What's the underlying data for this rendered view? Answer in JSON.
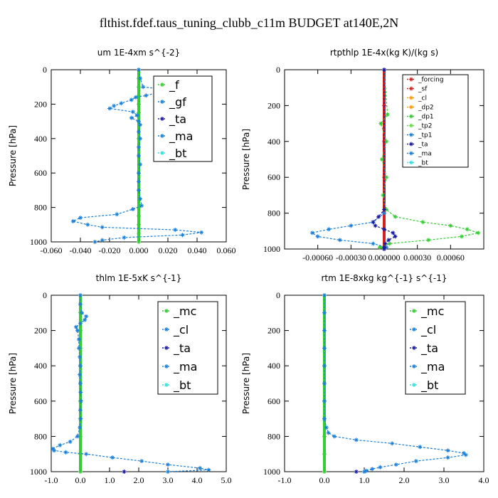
{
  "figure_title": "flthist.fdef.taus_tuning_clubb_c11m  BUDGET at140E,2N",
  "colors": {
    "black": "#000000",
    "blue": "#1a7fd8",
    "green": "#33cc33",
    "red": "#d42020",
    "darkblue": "#1a1aa0",
    "cyan": "#33e0e0",
    "orange": "#ff9900",
    "lime": "#66dd44"
  },
  "chart_data": [
    {
      "type": "line",
      "title": "um   1E-4xm s^{-2}",
      "xlabel": "",
      "ylabel": "Pressure [hPa]",
      "xlim": [
        -0.06,
        0.06
      ],
      "ylim": [
        1000,
        0
      ],
      "xticks": [
        -0.06,
        -0.04,
        -0.02,
        0.0,
        0.02,
        0.04,
        0.06
      ],
      "xtick_labels": [
        "-0.060",
        "-0.040",
        "-0.020",
        "0.000",
        "0.020",
        "0.040",
        "0.060"
      ],
      "yticks": [
        0,
        200,
        400,
        600,
        800,
        1000
      ],
      "ytick_labels": [
        "0",
        "200",
        "400",
        "600",
        "800",
        "1000"
      ],
      "legend": [
        "_f",
        "_gf",
        "_ta",
        "_ma",
        "_bt"
      ],
      "legend_position": "top-right",
      "series": [
        {
          "name": "_f",
          "color": "#33cc33",
          "y": [
            0,
            50,
            100,
            150,
            200,
            250,
            300,
            400,
            500,
            600,
            700,
            800,
            850,
            900,
            950,
            1000
          ],
          "x": [
            0,
            0,
            0,
            0,
            0,
            0,
            0,
            0,
            0,
            0,
            0,
            0,
            0,
            0,
            0,
            0
          ]
        },
        {
          "name": "_gf",
          "color": "#1a7fd8",
          "y": [
            0,
            50,
            100,
            115,
            125,
            130,
            135,
            150,
            160,
            175,
            195,
            210,
            225,
            245,
            265,
            280,
            300,
            320,
            360,
            400,
            450,
            500,
            550,
            600,
            650,
            700,
            750,
            790,
            810,
            840,
            860,
            880,
            900,
            915,
            930,
            945,
            960,
            975,
            990,
            1000
          ],
          "x": [
            0.0,
            0.001,
            0.003,
            0.018,
            0.02,
            0.035,
            0.012,
            0.005,
            -0.002,
            -0.005,
            -0.012,
            -0.017,
            -0.02,
            -0.004,
            -0.001,
            -0.005,
            0.0,
            0.001,
            0.0,
            0.001,
            0.0,
            0.0,
            0.001,
            0.0,
            0.0,
            0.0,
            0.001,
            0.002,
            -0.004,
            -0.015,
            -0.04,
            -0.045,
            -0.035,
            -0.025,
            0.025,
            0.043,
            0.03,
            -0.01,
            -0.025,
            -0.03
          ]
        },
        {
          "name": "_ta",
          "color": "#1a1aa0",
          "y": [],
          "x": []
        },
        {
          "name": "_ma",
          "color": "#1a7fd8",
          "y": [],
          "x": []
        },
        {
          "name": "_bt",
          "color": "#33e0e0",
          "y": [],
          "x": []
        }
      ]
    },
    {
      "type": "line",
      "title": "rtpthlp   1E-4x(kg K)/(kg s)",
      "xlabel": "",
      "ylabel": "Pressure [hPa]",
      "xlim": [
        -0.0009,
        0.0009
      ],
      "ylim": [
        1000,
        0
      ],
      "xticks": [
        -0.0006,
        -0.0003,
        0.0,
        0.0003,
        0.0006
      ],
      "xtick_labels": [
        "-0.00060",
        "-0.00030",
        "0.000000",
        "0.00030",
        "0.00060"
      ],
      "yticks": [
        0,
        200,
        400,
        600,
        800,
        1000
      ],
      "ytick_labels": [
        "0",
        "200",
        "400",
        "600",
        "800",
        "1000"
      ],
      "legend": [
        "_forcing",
        "_sf",
        "_cl",
        "_dp2",
        "_dp1",
        "_tp2",
        "_tp1",
        "_ta",
        "_ma",
        "_bt"
      ],
      "legend_position": "top-right",
      "series": [
        {
          "name": "_forcing",
          "color": "#d42020",
          "y": [
            0,
            200,
            400,
            600,
            800,
            1000
          ],
          "x": [
            0,
            0,
            0,
            0,
            0,
            0
          ]
        },
        {
          "name": "_dp1",
          "color": "#33cc33",
          "y": [
            0,
            250,
            300,
            400,
            500,
            600,
            700,
            780,
            820,
            850,
            870,
            890,
            910,
            930,
            950,
            970,
            990,
            1000
          ],
          "x": [
            0,
            3e-05,
            -3e-05,
            2e-05,
            -2e-05,
            2e-05,
            -1e-05,
            2e-05,
            0.0001,
            0.00035,
            0.0006,
            0.00075,
            0.00085,
            0.0007,
            0.0004,
            5e-05,
            -4e-05,
            0
          ]
        },
        {
          "name": "_tp1",
          "color": "#1a7fd8",
          "y": [
            0,
            800,
            850,
            870,
            890,
            910,
            930,
            950,
            970,
            990,
            1000
          ],
          "x": [
            0,
            0,
            -0.0001,
            -0.0003,
            -0.0005,
            -0.00065,
            -0.0006,
            -0.0004,
            -0.0001,
            2e-05,
            0
          ]
        },
        {
          "name": "_ta",
          "color": "#1a1aa0",
          "y": [
            0,
            780,
            820,
            850,
            870,
            890,
            910,
            930,
            950,
            970,
            990,
            1000
          ],
          "x": [
            0,
            0,
            -5e-05,
            -0.0001,
            -8e-05,
            0,
            8e-05,
            0.0001,
            4e-05,
            1e-05,
            0,
            0
          ]
        },
        {
          "name": "_sf",
          "color": "#d42020",
          "y": [],
          "x": []
        },
        {
          "name": "_cl",
          "color": "#ff9900",
          "y": [],
          "x": []
        },
        {
          "name": "_dp2",
          "color": "#ff9900",
          "y": [],
          "x": []
        },
        {
          "name": "_tp2",
          "color": "#66dd44",
          "y": [],
          "x": []
        },
        {
          "name": "_ma",
          "color": "#1a7fd8",
          "y": [],
          "x": []
        },
        {
          "name": "_bt",
          "color": "#33e0e0",
          "y": [],
          "x": []
        }
      ]
    },
    {
      "type": "line",
      "title": "thlm   1E-5xK s^{-1}",
      "xlabel": "",
      "ylabel": "Pressure [hPa]",
      "xlim": [
        -1.0,
        5.0
      ],
      "ylim": [
        1000,
        0
      ],
      "xticks": [
        -1,
        0,
        1,
        2,
        3,
        4,
        5
      ],
      "xtick_labels": [
        "-1.0",
        "0.0",
        "1.0",
        "2.0",
        "3.0",
        "4.0",
        "5.0"
      ],
      "yticks": [
        0,
        200,
        400,
        600,
        800,
        1000
      ],
      "ytick_labels": [
        "0",
        "200",
        "400",
        "600",
        "800",
        "1000"
      ],
      "legend": [
        "_mc",
        "_cl",
        "_ta",
        "_ma",
        "_bt"
      ],
      "legend_position": "top-right",
      "series": [
        {
          "name": "_mc",
          "color": "#33cc33",
          "y": [
            0,
            100,
            200,
            300,
            400,
            500,
            600,
            700,
            800,
            900,
            1000
          ],
          "x": [
            0,
            0,
            0,
            0,
            0,
            0,
            0,
            0,
            0,
            0,
            0
          ]
        },
        {
          "name": "_cl",
          "color": "#1a7fd8",
          "y": [
            0,
            50,
            100,
            120,
            140,
            160,
            180,
            200,
            250,
            300,
            350,
            400,
            450,
            500,
            550,
            600,
            650,
            700,
            750,
            800,
            830,
            850,
            870,
            880,
            890,
            900,
            920,
            940,
            960,
            980,
            990,
            1000
          ],
          "x": [
            0,
            0,
            0.05,
            0.2,
            0.15,
            0.0,
            -0.15,
            -0.1,
            -0.05,
            -0.05,
            -0.02,
            0.0,
            -0.02,
            0.0,
            0.01,
            0.02,
            0.0,
            0.01,
            -0.02,
            -0.1,
            -0.35,
            -0.7,
            -0.95,
            -0.9,
            -0.5,
            0.2,
            1.1,
            2.1,
            3.0,
            4.1,
            4.4,
            3.0
          ]
        },
        {
          "name": "_ta",
          "color": "#1a1aa0",
          "y": [
            1000
          ],
          "x": [
            1.5
          ]
        },
        {
          "name": "_ma",
          "color": "#1a7fd8",
          "y": [],
          "x": []
        },
        {
          "name": "_bt",
          "color": "#33e0e0",
          "y": [],
          "x": []
        }
      ]
    },
    {
      "type": "line",
      "title": "rtm   1E-8xkg kg^{-1} s^{-1}",
      "xlabel": "",
      "ylabel": "Pressure [hPa]",
      "xlim": [
        -1.0,
        4.0
      ],
      "ylim": [
        1000,
        0
      ],
      "xticks": [
        -1,
        0,
        1,
        2,
        3,
        4
      ],
      "xtick_labels": [
        "-1.0",
        "0.0",
        "1.0",
        "2.0",
        "3.0",
        "4.0"
      ],
      "yticks": [
        0,
        200,
        400,
        600,
        800,
        1000
      ],
      "ytick_labels": [
        "0",
        "200",
        "400",
        "600",
        "800",
        "1000"
      ],
      "legend": [
        "_mc",
        "_cl",
        "_ta",
        "_ma",
        "_bt"
      ],
      "legend_position": "top-right",
      "series": [
        {
          "name": "_mc",
          "color": "#33cc33",
          "y": [
            0,
            100,
            200,
            300,
            400,
            500,
            600,
            700,
            800,
            900,
            1000
          ],
          "x": [
            0,
            0,
            0,
            0,
            0,
            0,
            0,
            0,
            0,
            0,
            0
          ]
        },
        {
          "name": "_cl",
          "color": "#1a7fd8",
          "y": [
            0,
            100,
            200,
            300,
            400,
            500,
            600,
            700,
            750,
            780,
            800,
            820,
            840,
            860,
            880,
            895,
            905,
            920,
            940,
            960,
            975,
            985,
            995,
            1000
          ],
          "x": [
            0,
            0,
            0,
            0,
            0,
            0,
            0,
            0,
            0.05,
            0.1,
            0.25,
            0.8,
            1.7,
            2.4,
            3.1,
            3.5,
            3.55,
            3.1,
            2.3,
            1.8,
            1.4,
            1.2,
            1.05,
            1.0
          ]
        },
        {
          "name": "_ta",
          "color": "#1a1aa0",
          "y": [
            1000
          ],
          "x": [
            0.8
          ]
        },
        {
          "name": "_ma",
          "color": "#1a7fd8",
          "y": [],
          "x": []
        },
        {
          "name": "_bt",
          "color": "#33e0e0",
          "y": [],
          "x": []
        }
      ]
    }
  ]
}
